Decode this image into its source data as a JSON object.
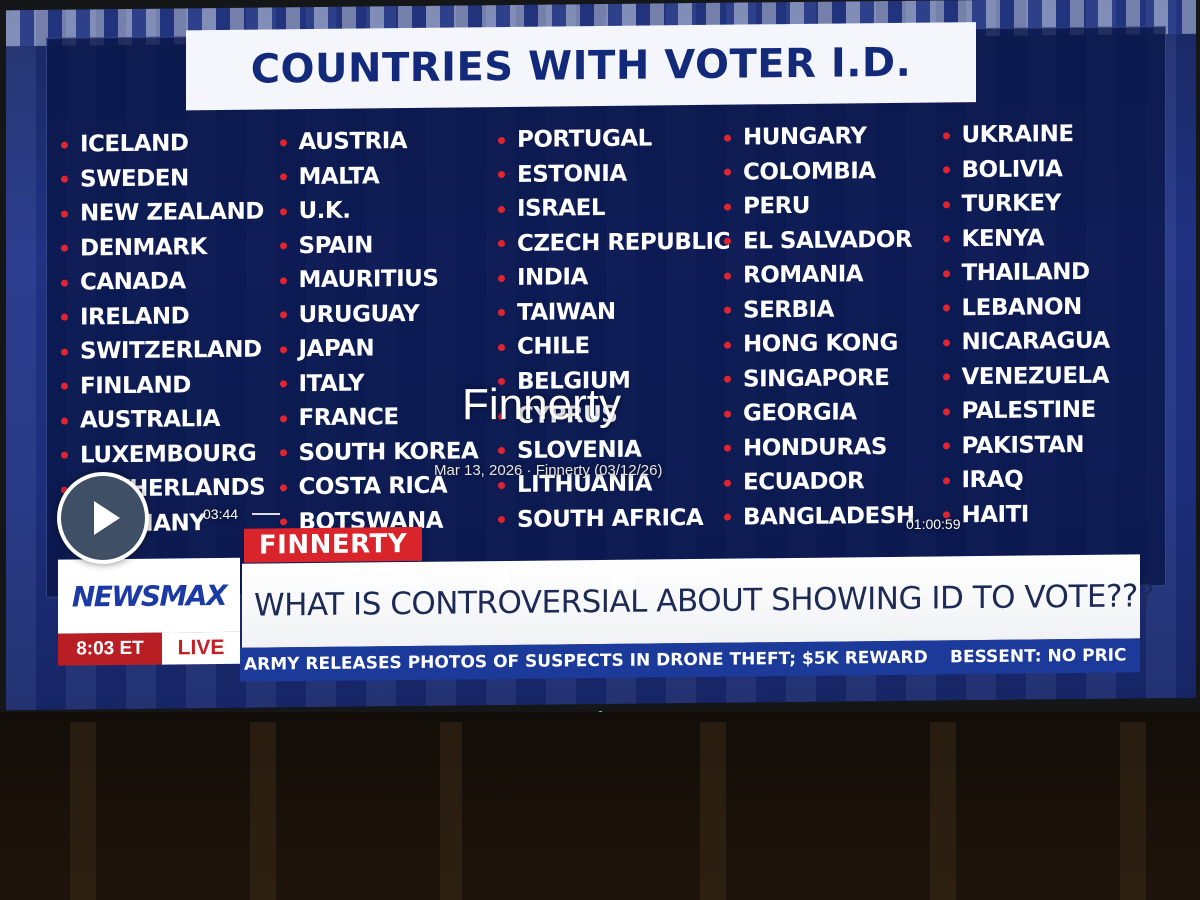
{
  "graphic": {
    "title": "COUNTRIES WITH VOTER I.D.",
    "columns": [
      [
        "ICELAND",
        "SWEDEN",
        "NEW ZEALAND",
        "DENMARK",
        "CANADA",
        "IRELAND",
        "SWITZERLAND",
        "FINLAND",
        "AUSTRALIA",
        "LUXEMBOURG",
        "NETHERLANDS",
        "GERMANY"
      ],
      [
        "AUSTRIA",
        "MALTA",
        "U.K.",
        "SPAIN",
        "MAURITIUS",
        "URUGUAY",
        "JAPAN",
        "ITALY",
        "FRANCE",
        "SOUTH KOREA",
        "COSTA RICA",
        "BOTSWANA"
      ],
      [
        "PORTUGAL",
        "ESTONIA",
        "ISRAEL",
        "CZECH REPUBLIC",
        "INDIA",
        "TAIWAN",
        "CHILE",
        "BELGIUM",
        "CYPRUS",
        "SLOVENIA",
        "LITHUANIA",
        "SOUTH AFRICA"
      ],
      [
        "HUNGARY",
        "COLOMBIA",
        "PERU",
        "EL SALVADOR",
        "ROMANIA",
        "SERBIA",
        "HONG KONG",
        "SINGAPORE",
        "GEORGIA",
        "HONDURAS",
        "ECUADOR",
        "BANGLADESH"
      ],
      [
        "UKRAINE",
        "BOLIVIA",
        "TURKEY",
        "KENYA",
        "THAILAND",
        "LEBANON",
        "NICARAGUA",
        "VENEZUELA",
        "PALESTINE",
        "PAKISTAN",
        "IRAQ",
        "HAITI"
      ]
    ]
  },
  "lower_third": {
    "show_tag": "FINNERTY",
    "headline": "WHAT IS CONTROVERSIAL ABOUT SHOWING ID TO VOTE???",
    "network_logo": "NEWSMAX",
    "clock": "8:03 ET",
    "live_label": "LIVE",
    "ticker_left": "ARMY RELEASES PHOTOS OF SUSPECTS IN DRONE THEFT; $5K REWARD",
    "ticker_right": "BESSENT: NO PRIC"
  },
  "player": {
    "watermark_title": "Finnerty",
    "watermark_subtitle": "Mar 13, 2026 · Finnerty (03/12/26)",
    "time_elapsed": "03:44",
    "time_remaining": "01:00:59",
    "play_icon": "play-icon"
  },
  "colors": {
    "title_text": "#13297a",
    "bullet": "#e02430",
    "headline_text": "#1d2a55",
    "newsmax_blue": "#1b3aa3",
    "live_red": "#c41f25"
  }
}
